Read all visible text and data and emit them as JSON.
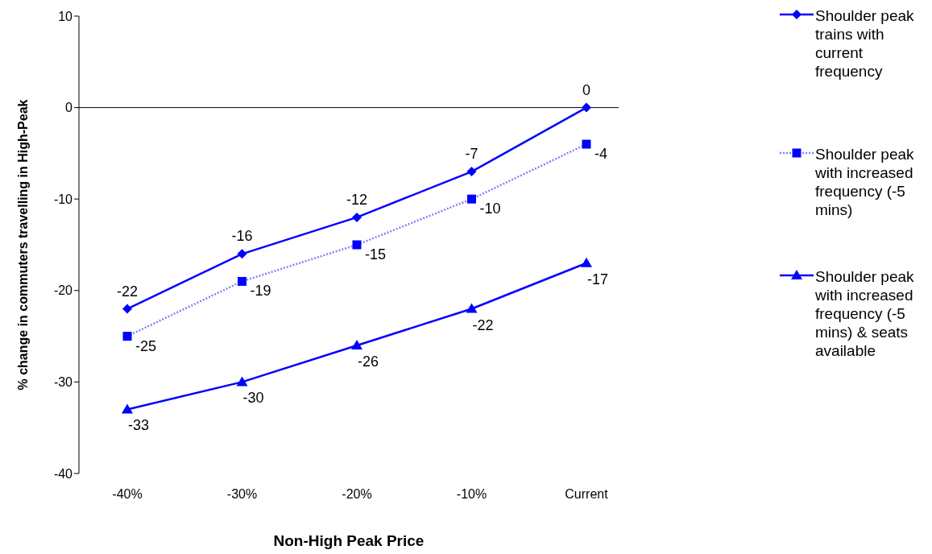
{
  "chart_data": {
    "type": "line",
    "xlabel": "Non-High Peak Price",
    "ylabel": "% change in commuters travelling in High-Peak",
    "categories": [
      "-40%",
      "-30%",
      "-20%",
      "-10%",
      "Current"
    ],
    "series": [
      {
        "name": "Shoulder peak trains with current frequency",
        "color": "#0000ff",
        "marker": "diamond",
        "line_style": "solid",
        "values": [
          -22,
          -16,
          -12,
          -7,
          0
        ]
      },
      {
        "name": "Shoulder peak with increased frequency (-5 mins)",
        "color": "#0000ff",
        "marker": "square",
        "line_style": "dotted",
        "values": [
          -25,
          -19,
          -15,
          -10,
          -4
        ]
      },
      {
        "name": "Shoulder peak with increased frequency (-5 mins) & seats available",
        "color": "#0000ff",
        "marker": "triangle",
        "line_style": "solid",
        "values": [
          -33,
          -30,
          -26,
          -22,
          -17
        ]
      }
    ],
    "ylim": [
      -40,
      10
    ],
    "yticks": [
      -40,
      -30,
      -20,
      -10,
      0,
      10
    ],
    "legend": "right",
    "grid": false,
    "data_labels": true,
    "ref_lines": [
      {
        "axis": "y",
        "value": 0
      }
    ]
  }
}
